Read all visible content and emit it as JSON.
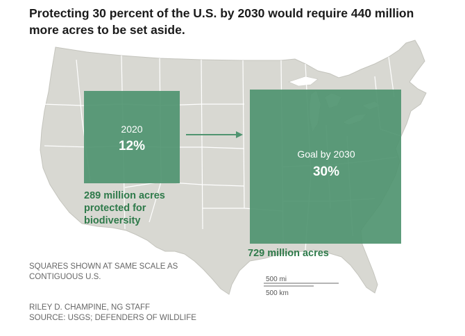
{
  "title": "Protecting 30 percent of the U.S. by 2030 would require 440 million more acres to be set aside.",
  "colors": {
    "land": "#d8d8d2",
    "state_border": "#ffffff",
    "water": "#ffffff",
    "protected_box": "#4f9470",
    "arrow": "#4f9470",
    "note_text": "#2e7a4a"
  },
  "left_square": {
    "year": "2020",
    "percent": "12%",
    "note": "289 million acres protected for biodiversity"
  },
  "right_square": {
    "label": "Goal by 2030",
    "percent": "30%",
    "note": "729 million acres"
  },
  "scale_note": "SQUARES SHOWN AT SAME SCALE AS CONTIGUOUS U.S.",
  "scale_bar": {
    "miles": "500 mi",
    "kilometers": "500 km"
  },
  "credits": {
    "staff": "RILEY D. CHAMPINE, NG STAFF",
    "source": "SOURCE: USGS; DEFENDERS OF WILDLIFE"
  }
}
